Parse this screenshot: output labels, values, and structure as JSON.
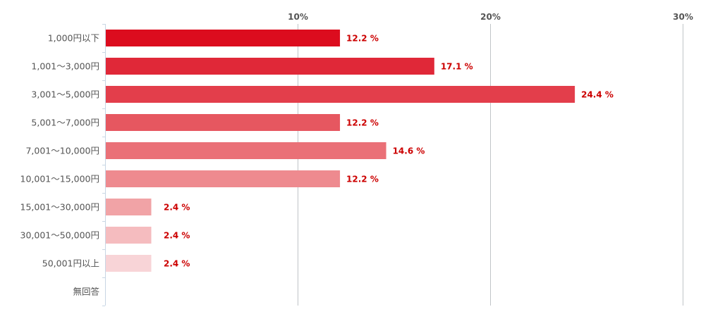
{
  "chart_data": {
    "type": "bar",
    "orientation": "horizontal",
    "categories": [
      "1,000円以下",
      "1,001～3,000円",
      "3,001～5,000円",
      "5,001～7,000円",
      "7,001～10,000円",
      "10,001～15,000円",
      "15,001～30,000円",
      "30,001～50,000円",
      "50,001円以上",
      "無回答"
    ],
    "values": [
      12.2,
      17.1,
      24.4,
      12.2,
      14.6,
      12.2,
      2.4,
      2.4,
      2.4,
      null
    ],
    "value_labels": [
      "12.2 %",
      "17.1 %",
      "24.4 %",
      "12.2 %",
      "14.6 %",
      "12.2 %",
      "2.4 %",
      "2.4 %",
      "2.4 %",
      ""
    ],
    "xlim": [
      0,
      30
    ],
    "xticks": [
      10,
      20,
      30
    ],
    "xtick_labels": [
      "10%",
      "20%",
      "30%"
    ],
    "tick_position": "top",
    "grid": true,
    "bar_colors": [
      "#dc0c1e",
      "#e02838",
      "#e33e4b",
      "#e65760",
      "#ea7077",
      "#ee8a8f",
      "#f1a3a6",
      "#f5bcbf",
      "#f8d4d7",
      "#fce9ea"
    ],
    "label_color": "#cc0000",
    "title": "",
    "xlabel": "",
    "ylabel": ""
  }
}
